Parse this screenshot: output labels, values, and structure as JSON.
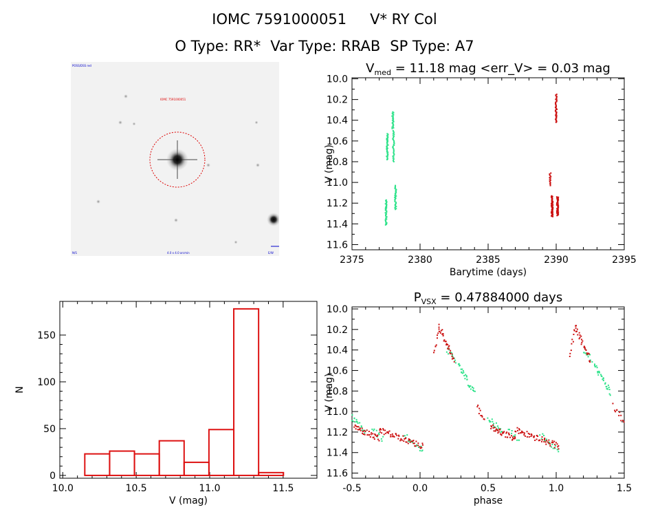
{
  "header": {
    "object_id": "IOMC 7591000051",
    "star_name": "V* RY Col",
    "o_type": "O Type: RR*",
    "var_type": "Var Type: RRAB",
    "sp_type": "SP Type: A7"
  },
  "thumbnail": {
    "label_top_left": "POSS/DSS red",
    "label_target": "IOMC 7591000051",
    "label_bottom_left": "N/S",
    "label_bottom_center": "4.0 x 4.0 arcmin",
    "label_bottom_right": "E/W",
    "circle_color": "#dd0000"
  },
  "colors": {
    "histogram": "#dd1111",
    "green_points": "#2ee28a",
    "red_points": "#cc1111",
    "axis": "#000000"
  },
  "chart_data": [
    {
      "id": "lightcurve",
      "type": "scatter",
      "title_prefix": "V",
      "title_sub": "med",
      "title_rest": " = 11.18 mag <err_V> = 0.03 mag",
      "xlabel": "Barytime (days)",
      "ylabel": "V (mag)",
      "xlim": [
        2375,
        2395
      ],
      "ylim": [
        11.65,
        9.99
      ],
      "y_inverted": true,
      "xticks": [
        2375,
        2380,
        2385,
        2390,
        2395
      ],
      "xtick_labels": [
        "2375",
        "2380",
        "2385",
        "2390",
        "2395"
      ],
      "yticks": [
        10.0,
        10.2,
        10.4,
        10.6,
        10.8,
        11.0,
        11.2,
        11.4,
        11.6
      ],
      "ytick_labels": [
        "10.0",
        "10.2",
        "10.4",
        "10.6",
        "10.8",
        "11.0",
        "11.2",
        "11.4",
        "11.6"
      ],
      "series": [
        {
          "name": "green",
          "color": "#2ee28a",
          "clusters": [
            {
              "x": 2377.5,
              "ymin": 11.17,
              "ymax": 11.41,
              "n": 40
            },
            {
              "x": 2377.6,
              "ymin": 10.53,
              "ymax": 10.78,
              "n": 40
            },
            {
              "x": 2378.0,
              "ymin": 10.32,
              "ymax": 10.48,
              "n": 25
            },
            {
              "x": 2378.05,
              "ymin": 10.5,
              "ymax": 10.8,
              "n": 35
            },
            {
              "x": 2378.2,
              "ymin": 11.03,
              "ymax": 11.26,
              "n": 35
            }
          ]
        },
        {
          "name": "red",
          "color": "#cc1111",
          "clusters": [
            {
              "x": 2389.55,
              "ymin": 10.91,
              "ymax": 11.03,
              "n": 15
            },
            {
              "x": 2389.7,
              "ymin": 11.13,
              "ymax": 11.33,
              "n": 60
            },
            {
              "x": 2390.0,
              "ymin": 10.15,
              "ymax": 10.42,
              "n": 40
            },
            {
              "x": 2390.1,
              "ymin": 11.14,
              "ymax": 11.32,
              "n": 60
            }
          ]
        }
      ]
    },
    {
      "id": "histogram",
      "type": "bar",
      "xlabel": "V (mag)",
      "ylabel": "N",
      "xlim": [
        9.98,
        11.73
      ],
      "ylim": [
        -3,
        186
      ],
      "xticks": [
        10.0,
        10.5,
        11.0,
        11.5
      ],
      "xtick_labels": [
        "10.0",
        "10.5",
        "11.0",
        "11.5"
      ],
      "yticks": [
        0,
        50,
        100,
        150
      ],
      "ytick_labels": [
        "0",
        "50",
        "100",
        "150"
      ],
      "bin_edges": [
        10.15,
        10.319,
        10.488,
        10.657,
        10.826,
        10.995,
        11.164,
        11.333,
        11.502
      ],
      "values": [
        23,
        26,
        23,
        37,
        14,
        49,
        178,
        3
      ]
    },
    {
      "id": "phased",
      "type": "scatter",
      "title_prefix": "P",
      "title_sub": "VSX",
      "title_rest": " = 0.47884000 days",
      "period_days": 0.47884,
      "xlabel": "phase",
      "ylabel": "V (mag)",
      "xlim": [
        -0.5,
        1.5
      ],
      "ylim": [
        11.65,
        9.98
      ],
      "y_inverted": true,
      "xticks": [
        -0.5,
        0.0,
        0.5,
        1.0,
        1.5
      ],
      "xtick_labels": [
        "-0.5",
        "0.0",
        "0.5",
        "1.0",
        "1.5"
      ],
      "yticks": [
        10.0,
        10.2,
        10.4,
        10.6,
        10.8,
        11.0,
        11.2,
        11.4,
        11.6
      ],
      "ytick_labels": [
        "10.0",
        "10.2",
        "10.4",
        "10.6",
        "10.8",
        "11.0",
        "11.2",
        "11.4",
        "11.6"
      ],
      "series": [
        {
          "name": "green",
          "color": "#2ee28a",
          "segments": [
            {
              "x0": -0.5,
              "x1": -0.4,
              "y0": 11.06,
              "y1": 11.2,
              "n": 20
            },
            {
              "x0": -0.35,
              "x1": -0.27,
              "y0": 11.18,
              "y1": 11.27,
              "n": 10
            },
            {
              "x0": -0.12,
              "x1": 0.02,
              "y0": 11.23,
              "y1": 11.38,
              "n": 18
            },
            {
              "x0": 0.2,
              "x1": 0.26,
              "y0": 10.4,
              "y1": 10.5,
              "n": 12
            },
            {
              "x0": 0.28,
              "x1": 0.4,
              "y0": 10.55,
              "y1": 10.82,
              "n": 30
            },
            {
              "x0": 0.5,
              "x1": 0.6,
              "y0": 11.06,
              "y1": 11.2,
              "n": 20
            },
            {
              "x0": 0.65,
              "x1": 0.73,
              "y0": 11.18,
              "y1": 11.27,
              "n": 10
            },
            {
              "x0": 0.88,
              "x1": 1.02,
              "y0": 11.23,
              "y1": 11.38,
              "n": 18
            },
            {
              "x0": 1.2,
              "x1": 1.26,
              "y0": 10.4,
              "y1": 10.5,
              "n": 12
            },
            {
              "x0": 1.28,
              "x1": 1.4,
              "y0": 10.55,
              "y1": 10.82,
              "n": 30
            }
          ]
        },
        {
          "name": "red",
          "color": "#cc1111",
          "segments": [
            {
              "x0": -0.48,
              "x1": -0.3,
              "y0": 11.15,
              "y1": 11.27,
              "n": 40
            },
            {
              "x0": -0.3,
              "x1": 0.02,
              "y0": 11.18,
              "y1": 11.34,
              "n": 60
            },
            {
              "x0": 0.1,
              "x1": 0.14,
              "y0": 10.45,
              "y1": 10.17,
              "n": 10
            },
            {
              "x0": 0.14,
              "x1": 0.25,
              "y0": 10.17,
              "y1": 10.5,
              "n": 30
            },
            {
              "x0": 0.42,
              "x1": 0.47,
              "y0": 10.95,
              "y1": 11.08,
              "n": 10
            },
            {
              "x0": 0.52,
              "x1": 0.7,
              "y0": 11.15,
              "y1": 11.27,
              "n": 40
            },
            {
              "x0": 0.7,
              "x1": 1.02,
              "y0": 11.18,
              "y1": 11.34,
              "n": 60
            },
            {
              "x0": 1.1,
              "x1": 1.14,
              "y0": 10.45,
              "y1": 10.17,
              "n": 10
            },
            {
              "x0": 1.14,
              "x1": 1.25,
              "y0": 10.17,
              "y1": 10.5,
              "n": 30
            },
            {
              "x0": 1.42,
              "x1": 1.5,
              "y0": 10.95,
              "y1": 11.1,
              "n": 12
            }
          ]
        }
      ]
    }
  ]
}
